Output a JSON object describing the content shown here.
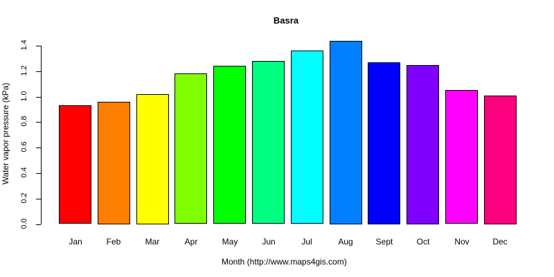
{
  "chart_data": {
    "type": "bar",
    "title": "Basra",
    "xlabel": "Month (http://www.maps4gis.com)",
    "ylabel": "Water vapor pressure (kPa)",
    "ylim": [
      0,
      1.4
    ],
    "yticks": [
      "0.0",
      "0.2",
      "0.4",
      "0.6",
      "0.8",
      "1.0",
      "1.2",
      "1.4"
    ],
    "grid": false,
    "categories": [
      "Jan",
      "Feb",
      "Mar",
      "Apr",
      "May",
      "Jun",
      "Jul",
      "Aug",
      "Sept",
      "Oct",
      "Nov",
      "Dec"
    ],
    "values": [
      0.93,
      0.96,
      1.02,
      1.18,
      1.24,
      1.28,
      1.36,
      1.44,
      1.27,
      1.25,
      1.05,
      1.01
    ],
    "colors": [
      "#FF0000",
      "#FF8000",
      "#FFFF00",
      "#80FF00",
      "#00FF00",
      "#00FF80",
      "#00FFFF",
      "#0080FF",
      "#0000FF",
      "#8000FF",
      "#FF00FF",
      "#FF0080"
    ]
  }
}
